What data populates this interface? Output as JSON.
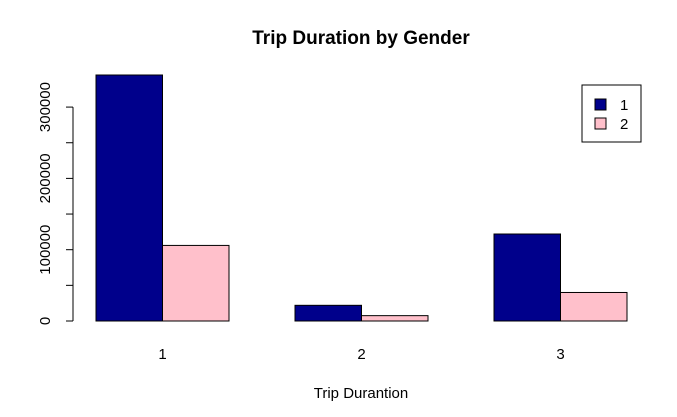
{
  "chart_data": {
    "type": "bar",
    "title": "Trip Duration by Gender",
    "xlabel": "Trip Durantion",
    "ylabel": "",
    "categories": [
      "1",
      "2",
      "3"
    ],
    "series": [
      {
        "name": "1",
        "color": "#00008B",
        "values": [
          345000,
          22000,
          122000
        ]
      },
      {
        "name": "2",
        "color": "#FFC0CB",
        "values": [
          106000,
          7500,
          40000
        ]
      }
    ],
    "ylim": [
      0,
      345000
    ],
    "y_ticks": [
      0,
      100000,
      200000,
      300000
    ],
    "y_tick_labels": [
      "0",
      "100000",
      "200000",
      "300000"
    ],
    "legend_position": "top-right",
    "grid": false
  }
}
